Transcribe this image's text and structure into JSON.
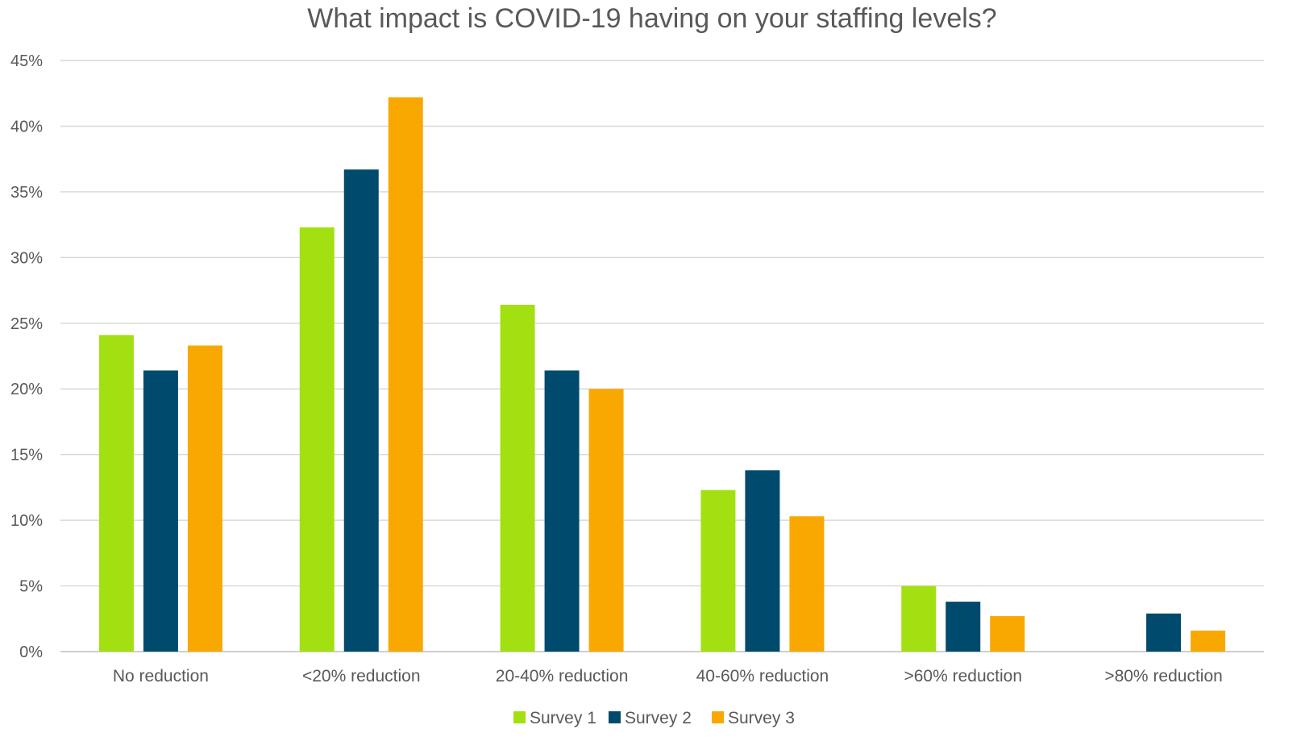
{
  "chart_data": {
    "type": "bar",
    "title": "What impact is COVID-19 having on your staffing levels?",
    "xlabel": "",
    "ylabel": "",
    "categories": [
      "No reduction",
      "<20% reduction",
      "20-40% reduction",
      "40-60% reduction",
      ">60% reduction",
      ">80% reduction"
    ],
    "series": [
      {
        "name": "Survey 1",
        "color": "#a3e011",
        "values": [
          24.1,
          32.3,
          26.4,
          12.3,
          5.0,
          0
        ]
      },
      {
        "name": "Survey 2",
        "color": "#004a6e",
        "values": [
          21.4,
          36.7,
          21.4,
          13.8,
          3.8,
          2.9
        ]
      },
      {
        "name": "Survey 3",
        "color": "#f8a800",
        "values": [
          23.3,
          42.2,
          20.0,
          10.3,
          2.7,
          1.6
        ]
      }
    ],
    "ylim": [
      0,
      45
    ],
    "yticks": [
      0,
      5,
      10,
      15,
      20,
      25,
      30,
      35,
      40,
      45
    ],
    "ytick_labels": [
      "0%",
      "5%",
      "10%",
      "15%",
      "20%",
      "25%",
      "30%",
      "35%",
      "40%",
      "45%"
    ],
    "grid": true,
    "legend_position": "bottom"
  }
}
